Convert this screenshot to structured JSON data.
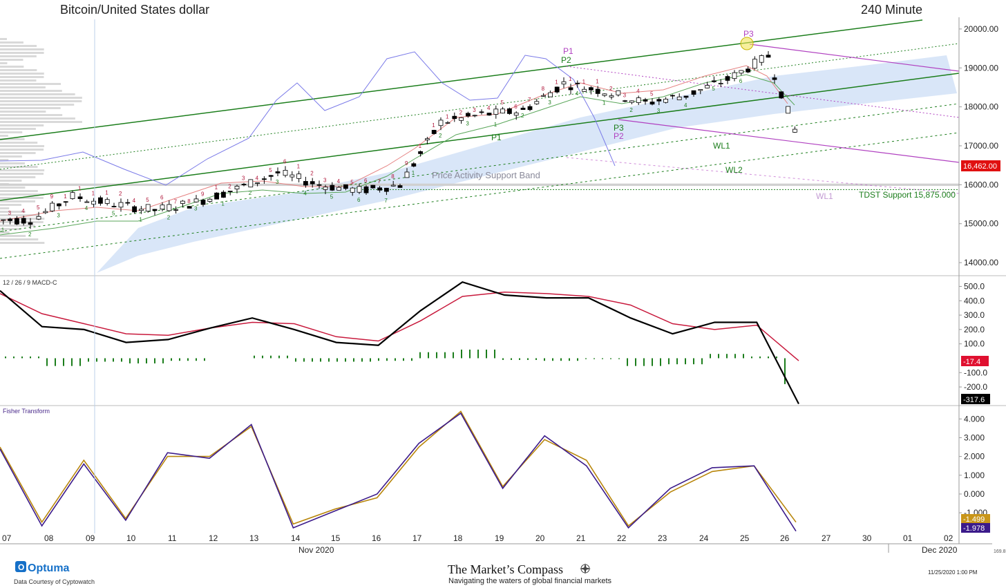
{
  "header": {
    "instrument": "Bitcoin/United States dollar",
    "interval": "240 Minute"
  },
  "price_panel": {
    "y_ticks": [
      "20000.00",
      "19000.00",
      "18000.00",
      "17000.00",
      "16000.00",
      "15000.00",
      "14000.00"
    ],
    "last_price": "16,462.00",
    "annotations": {
      "support_band": "Price Activity Support Band",
      "tdst": "TDST Support 15,875.000",
      "p1_purple": "P1",
      "p2_green": "P2",
      "p1_green": "P1",
      "p3_green": "P3",
      "p2_purple": "P2",
      "p3_purple": "P3",
      "wl1_green": "WL1",
      "wl2_green": "WL2",
      "wl1_purple": "WL1"
    },
    "td_counts": {
      "red": [
        "3",
        "4",
        "5",
        "9",
        "1",
        "1",
        "1",
        "1",
        "2",
        "4",
        "5",
        "6",
        "7",
        "8",
        "9",
        "1",
        "2",
        "3",
        "4",
        "5",
        "6",
        "1",
        "2",
        "3",
        "4",
        "5",
        "6",
        "7",
        "8",
        "9",
        "1",
        "1",
        "1",
        "2",
        "3",
        "4",
        "5",
        "6",
        "7",
        "8",
        "1",
        "1",
        "1",
        "1",
        "2",
        "3",
        "4",
        "5"
      ],
      "green": [
        "1",
        "2",
        "3",
        "4",
        "5",
        "1",
        "2",
        "3",
        "1",
        "2",
        "3",
        "4",
        "5",
        "6",
        "7",
        "1",
        "2",
        "3",
        "1",
        "2",
        "3",
        "4",
        "1",
        "2",
        "3",
        "4",
        "5",
        "6"
      ]
    }
  },
  "macd_panel": {
    "label": "12 / 26 / 9 MACD-C",
    "y_ticks": [
      "500.0",
      "400.0",
      "300.0",
      "200.0",
      "100.0",
      "-100.0",
      "-200.0"
    ],
    "signal_badge": "-17.4",
    "macd_badge": "-317.6"
  },
  "fisher_panel": {
    "label": "Fisher Transform",
    "y_ticks": [
      "4.000",
      "3.000",
      "2.000",
      "1.000",
      "0.000",
      "-1.000"
    ],
    "trigger_badge": "-1.499",
    "fisher_badge": "-1.978"
  },
  "x_axis": {
    "day_labels": [
      "07",
      "08",
      "09",
      "10",
      "11",
      "12",
      "13",
      "14",
      "15",
      "16",
      "17",
      "18",
      "19",
      "20",
      "21",
      "22",
      "23",
      "24",
      "25",
      "26",
      "27",
      "30",
      "01",
      "02"
    ],
    "month_labels": [
      "Nov 2020",
      "Dec 2020"
    ],
    "edge_value": "169.8"
  },
  "footer": {
    "logo": "Optuma",
    "credit": "Data Courtesy of Cyptowatch",
    "brand": "The Market’s Compass",
    "tagline": "Navigating the waters of global financial markets",
    "timestamp": "11/25/2020 1:00 PM"
  },
  "colors": {
    "up_candle": "#ffffff",
    "down_candle": "#000000",
    "pitchfork_green": "#1b7d1b",
    "pitchfork_purple": "#b040c0",
    "cloud": "#c9dbf5",
    "macd_line": "#000000",
    "signal_line": "#c8193c",
    "histogram": "#1b7d1b",
    "fisher_line": "#3b1a8a",
    "fisher_trigger": "#b8860b",
    "last_price_badge": "#e01010"
  },
  "chart_data": [
    {
      "type": "candlestick",
      "title": "Bitcoin/United States dollar",
      "interval": "240 Minute",
      "ylim": [
        13700,
        20300
      ],
      "grid": false,
      "x": [
        "07",
        "08",
        "09",
        "10",
        "11",
        "12",
        "13",
        "14",
        "15",
        "16",
        "17",
        "18",
        "19",
        "20",
        "21",
        "22",
        "23",
        "24",
        "25",
        "26"
      ],
      "close": [
        15100,
        15700,
        15500,
        15350,
        15550,
        15900,
        16300,
        16000,
        15850,
        16000,
        17600,
        17800,
        17900,
        18600,
        18400,
        18100,
        18300,
        18700,
        19300,
        16462
      ],
      "support_lines": [
        15875
      ],
      "last_price": 16462
    },
    {
      "type": "line",
      "title": "12 / 26 / 9 MACD-C",
      "ylim": [
        -320,
        560
      ],
      "x": [
        "07",
        "08",
        "09",
        "10",
        "11",
        "12",
        "13",
        "14",
        "15",
        "16",
        "17",
        "18",
        "19",
        "20",
        "21",
        "22",
        "23",
        "24",
        "25",
        "26"
      ],
      "series": [
        {
          "values": [
            470,
            220,
            200,
            110,
            130,
            210,
            280,
            200,
            110,
            90,
            330,
            530,
            440,
            420,
            420,
            280,
            170,
            250,
            250,
            -317.6
          ]
        },
        {
          "values": [
            450,
            310,
            240,
            170,
            160,
            210,
            250,
            240,
            150,
            120,
            260,
            430,
            460,
            450,
            430,
            370,
            240,
            200,
            230,
            -17.4
          ]
        }
      ]
    },
    {
      "type": "line",
      "title": "Fisher Transform",
      "ylim": [
        -2.1,
        4.6
      ],
      "x": [
        "07",
        "08",
        "09",
        "10",
        "11",
        "12",
        "13",
        "14",
        "15",
        "16",
        "17",
        "18",
        "19",
        "20",
        "21",
        "22",
        "23",
        "24",
        "25",
        "26"
      ],
      "series": [
        {
          "values": [
            2.4,
            -1.7,
            1.6,
            -1.4,
            2.2,
            1.9,
            3.7,
            -1.8,
            -0.9,
            0.0,
            2.7,
            4.3,
            0.3,
            3.1,
            1.5,
            -1.8,
            0.3,
            1.4,
            1.5,
            -1.978
          ]
        },
        {
          "values": [
            2.5,
            -1.5,
            1.8,
            -1.3,
            2.0,
            2.0,
            3.6,
            -1.6,
            -0.8,
            -0.2,
            2.5,
            4.4,
            0.4,
            2.9,
            1.8,
            -1.7,
            0.1,
            1.2,
            1.5,
            -1.499
          ]
        }
      ]
    }
  ]
}
